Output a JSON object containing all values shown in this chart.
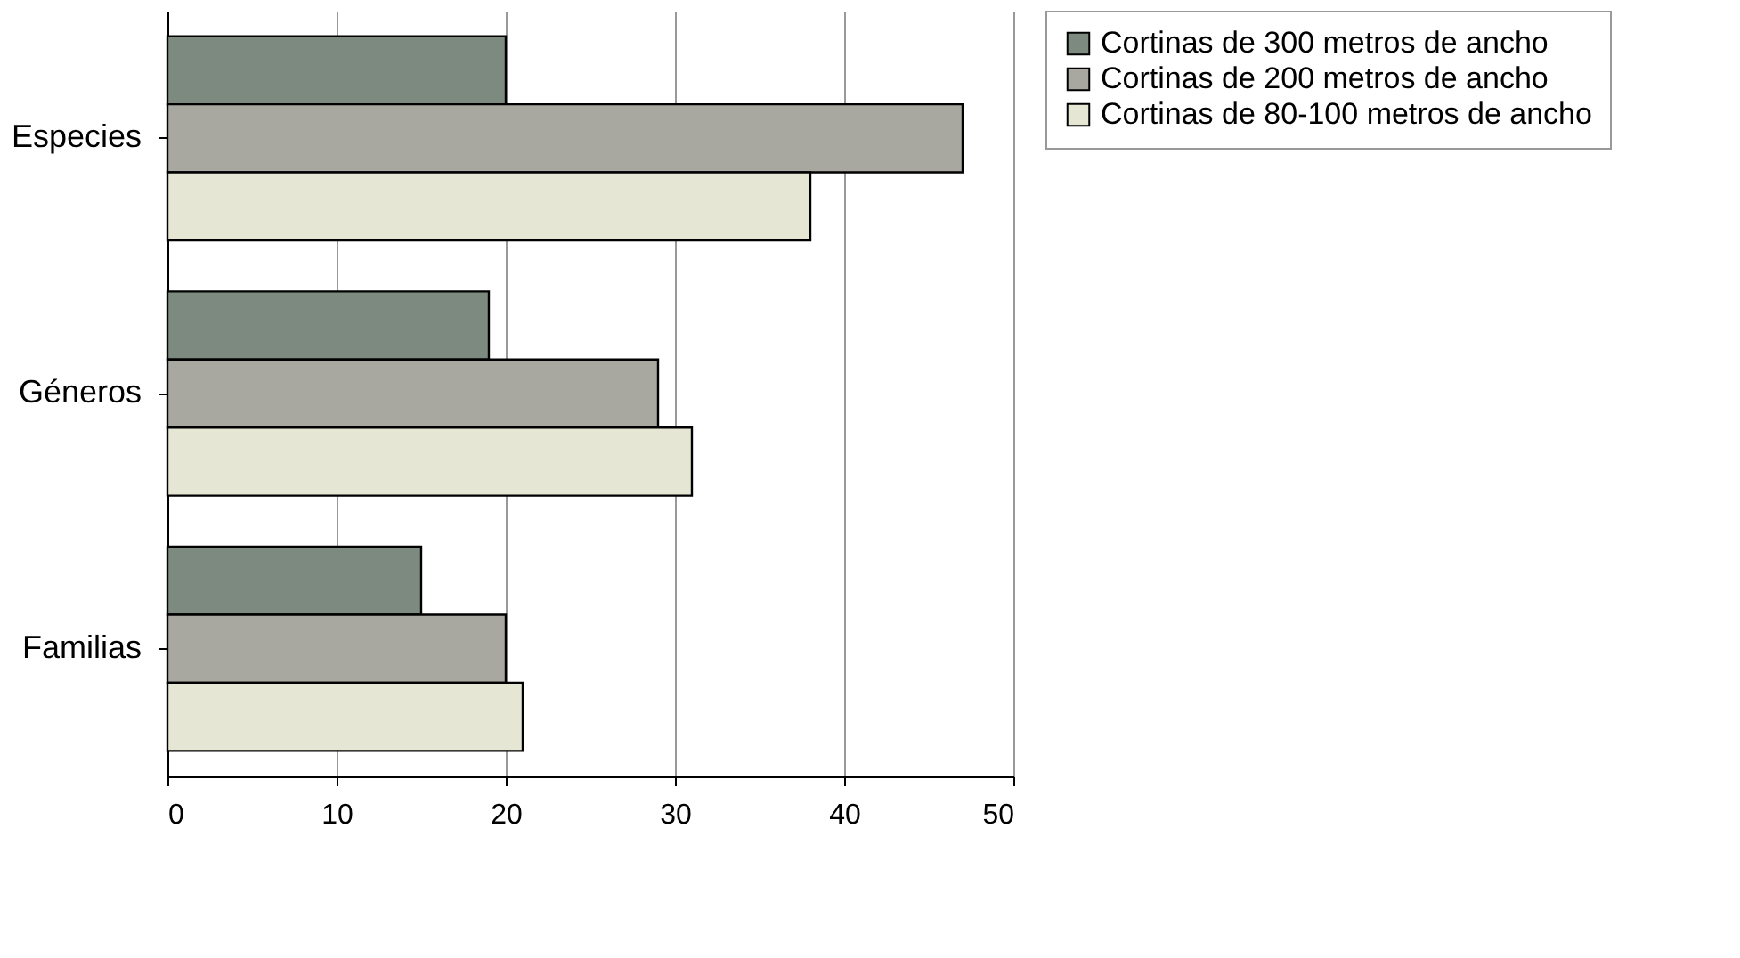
{
  "chart_data": {
    "type": "bar",
    "orientation": "horizontal",
    "categories": [
      "Especies",
      "Géneros",
      "Familias"
    ],
    "series": [
      {
        "name": "Cortinas de 300 metros de ancho",
        "color": "#7d8a80",
        "values": [
          20,
          19,
          15
        ]
      },
      {
        "name": "Cortinas de 200 metros de ancho",
        "color": "#a8a8a0",
        "values": [
          47,
          29,
          20
        ]
      },
      {
        "name": "Cortinas de 80-100 metros de ancho",
        "color": "#e6e6d4",
        "values": [
          38,
          31,
          21
        ]
      }
    ],
    "xlim": [
      0,
      50
    ],
    "xticks": [
      0,
      10,
      20,
      30,
      40,
      50
    ],
    "grid": "x",
    "legend": "right"
  }
}
